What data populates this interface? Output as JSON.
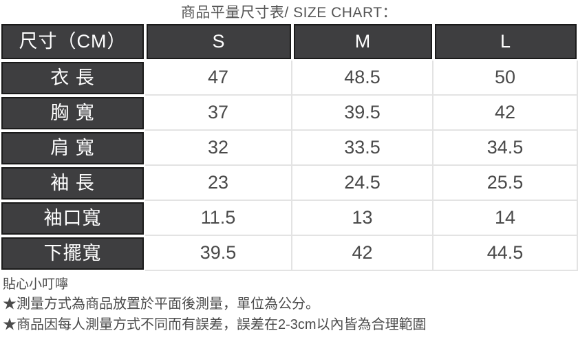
{
  "title": "商品平量尺寸表/ SIZE CHART：",
  "chart_data": {
    "type": "table",
    "title": "商品平量尺寸表/ SIZE CHART：",
    "unit": "CM",
    "columns": [
      "尺寸（CM）",
      "S",
      "M",
      "L"
    ],
    "rows": [
      [
        "衣 長",
        "47",
        "48.5",
        "50"
      ],
      [
        "胸 寬",
        "37",
        "39.5",
        "42"
      ],
      [
        "肩 寬",
        "32",
        "33.5",
        "34.5"
      ],
      [
        "袖 長",
        "23",
        "24.5",
        "25.5"
      ],
      [
        "袖口寬",
        "11.5",
        "13",
        "14"
      ],
      [
        "下擺寬",
        "39.5",
        "42",
        "44.5"
      ]
    ]
  },
  "notes": {
    "heading": "貼心小叮嚀",
    "lines": [
      "★測量方式為商品放置於平面後測量，單位為公分。",
      "★商品因每人測量方式不同而有誤差，誤差在2-3cm以內皆為合理範圍"
    ]
  },
  "colors": {
    "header_bg": "#3E3E40",
    "header_border": "#1A1A1A",
    "grid_line": "#E3E3E3",
    "header_text": "#FFFFFF",
    "body_text": "#4A4A4A"
  }
}
